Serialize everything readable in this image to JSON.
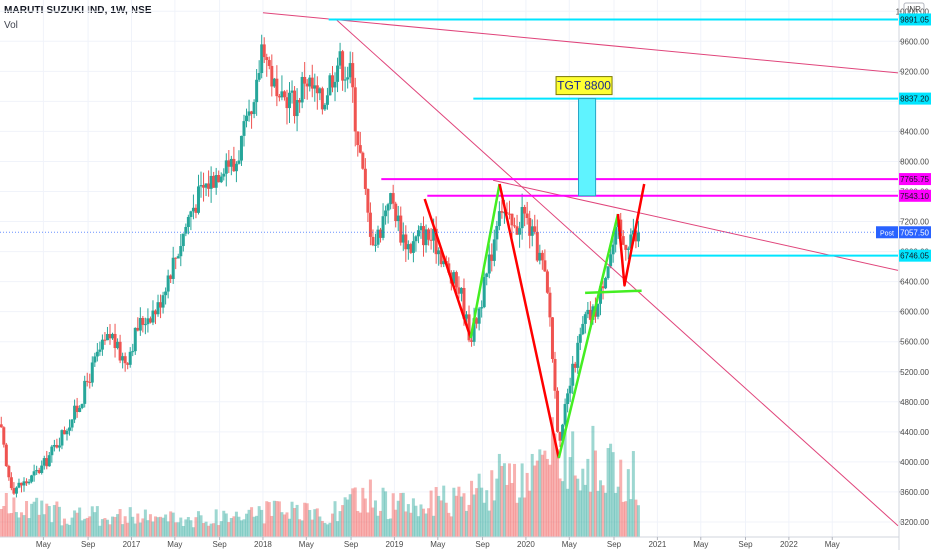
{
  "header": {
    "title": "MARUTI SUZUKI IND, 1W, NSE",
    "volume_label": "Vol"
  },
  "currency_badge": "INR",
  "colors": {
    "up": "#26a69a",
    "down": "#ef5350",
    "cyan_level": "#00e5ff",
    "magenta_level": "#ff00ff",
    "trendline": "#e0457b",
    "pattern_red": "#ff0000",
    "pattern_green": "#44ee22",
    "target_box": "#5ff3ff",
    "target_label_bg": "#ffff33"
  },
  "chart_data": {
    "type": "candlestick",
    "symbol": "MARUTI SUZUKI IND",
    "interval": "1W",
    "exchange": "NSE",
    "ylim": [
      3000,
      10150
    ],
    "y_ticks": [
      "10000.00",
      "9600.00",
      "9200.00",
      "8800.00",
      "8400.00",
      "8000.00",
      "7600.00",
      "7200.00",
      "6800.00",
      "6400.00",
      "6000.00",
      "5600.00",
      "5200.00",
      "4800.00",
      "4400.00",
      "4000.00",
      "3600.00",
      "3200.00"
    ],
    "x_ticks": [
      {
        "label": "May",
        "t": 2016.33
      },
      {
        "label": "Sep",
        "t": 2016.67
      },
      {
        "label": "2017",
        "t": 2017.0
      },
      {
        "label": "May",
        "t": 2017.33
      },
      {
        "label": "Sep",
        "t": 2017.67
      },
      {
        "label": "2018",
        "t": 2018.0
      },
      {
        "label": "May",
        "t": 2018.33
      },
      {
        "label": "Sep",
        "t": 2018.67
      },
      {
        "label": "2019",
        "t": 2019.0
      },
      {
        "label": "May",
        "t": 2019.33
      },
      {
        "label": "Sep",
        "t": 2019.67
      },
      {
        "label": "2020",
        "t": 2020.0
      },
      {
        "label": "May",
        "t": 2020.33
      },
      {
        "label": "Sep",
        "t": 2020.67
      },
      {
        "label": "2021",
        "t": 2021.0
      },
      {
        "label": "May",
        "t": 2021.33
      },
      {
        "label": "Sep",
        "t": 2021.67
      },
      {
        "label": "2022",
        "t": 2022.0
      },
      {
        "label": "May",
        "t": 2022.33
      }
    ],
    "price_path": [
      {
        "t": 2016.0,
        "price": 4500
      },
      {
        "t": 2016.05,
        "price": 3900
      },
      {
        "t": 2016.1,
        "price": 3650
      },
      {
        "t": 2016.22,
        "price": 3750
      },
      {
        "t": 2016.33,
        "price": 3950
      },
      {
        "t": 2016.5,
        "price": 4450
      },
      {
        "t": 2016.6,
        "price": 4750
      },
      {
        "t": 2016.67,
        "price": 5100
      },
      {
        "t": 2016.75,
        "price": 5450
      },
      {
        "t": 2016.85,
        "price": 5700
      },
      {
        "t": 2016.9,
        "price": 5450
      },
      {
        "t": 2016.96,
        "price": 5350
      },
      {
        "t": 2017.05,
        "price": 5800
      },
      {
        "t": 2017.12,
        "price": 5950
      },
      {
        "t": 2017.2,
        "price": 6050
      },
      {
        "t": 2017.27,
        "price": 6450
      },
      {
        "t": 2017.35,
        "price": 6800
      },
      {
        "t": 2017.45,
        "price": 7350
      },
      {
        "t": 2017.55,
        "price": 7650
      },
      {
        "t": 2017.65,
        "price": 7850
      },
      {
        "t": 2017.72,
        "price": 8050
      },
      {
        "t": 2017.78,
        "price": 7900
      },
      {
        "t": 2017.85,
        "price": 8350
      },
      {
        "t": 2017.93,
        "price": 8600
      },
      {
        "t": 2018.0,
        "price": 9700
      },
      {
        "t": 2018.03,
        "price": 9350
      },
      {
        "t": 2018.08,
        "price": 9050
      },
      {
        "t": 2018.12,
        "price": 8650
      },
      {
        "t": 2018.18,
        "price": 8900
      },
      {
        "t": 2018.25,
        "price": 8750
      },
      {
        "t": 2018.32,
        "price": 9150
      },
      {
        "t": 2018.38,
        "price": 8950
      },
      {
        "t": 2018.45,
        "price": 8750
      },
      {
        "t": 2018.5,
        "price": 9050
      },
      {
        "t": 2018.57,
        "price": 9350
      },
      {
        "t": 2018.62,
        "price": 9250
      },
      {
        "t": 2018.67,
        "price": 9150
      },
      {
        "t": 2018.7,
        "price": 8600
      },
      {
        "t": 2018.75,
        "price": 7950
      },
      {
        "t": 2018.8,
        "price": 7250
      },
      {
        "t": 2018.85,
        "price": 6900
      },
      {
        "t": 2018.9,
        "price": 7150
      },
      {
        "t": 2018.95,
        "price": 7550
      },
      {
        "t": 2019.0,
        "price": 7400
      },
      {
        "t": 2019.05,
        "price": 7050
      },
      {
        "t": 2019.12,
        "price": 6850
      },
      {
        "t": 2019.2,
        "price": 7050
      },
      {
        "t": 2019.3,
        "price": 6950
      },
      {
        "t": 2019.35,
        "price": 6800
      },
      {
        "t": 2019.42,
        "price": 6450
      },
      {
        "t": 2019.5,
        "price": 6300
      },
      {
        "t": 2019.55,
        "price": 5850
      },
      {
        "t": 2019.58,
        "price": 5650
      },
      {
        "t": 2019.63,
        "price": 5950
      },
      {
        "t": 2019.7,
        "price": 6450
      },
      {
        "t": 2019.75,
        "price": 6900
      },
      {
        "t": 2019.8,
        "price": 7500
      },
      {
        "t": 2019.86,
        "price": 7200
      },
      {
        "t": 2019.92,
        "price": 7050
      },
      {
        "t": 2019.97,
        "price": 7350
      },
      {
        "t": 2020.02,
        "price": 7150
      },
      {
        "t": 2020.08,
        "price": 6850
      },
      {
        "t": 2020.13,
        "price": 6600
      },
      {
        "t": 2020.18,
        "price": 6000
      },
      {
        "t": 2020.21,
        "price": 5200
      },
      {
        "t": 2020.24,
        "price": 4500
      },
      {
        "t": 2020.27,
        "price": 4300
      },
      {
        "t": 2020.3,
        "price": 4700
      },
      {
        "t": 2020.35,
        "price": 5150
      },
      {
        "t": 2020.4,
        "price": 5550
      },
      {
        "t": 2020.45,
        "price": 5900
      },
      {
        "t": 2020.5,
        "price": 5950
      },
      {
        "t": 2020.55,
        "price": 6100
      },
      {
        "t": 2020.6,
        "price": 6550
      },
      {
        "t": 2020.65,
        "price": 6800
      },
      {
        "t": 2020.7,
        "price": 7100
      },
      {
        "t": 2020.73,
        "price": 6900
      },
      {
        "t": 2020.77,
        "price": 6950
      },
      {
        "t": 2020.8,
        "price": 7050
      },
      {
        "t": 2020.84,
        "price": 6950
      },
      {
        "t": 2020.87,
        "price": 7050
      }
    ],
    "volume_path": [
      {
        "t": 2016.0,
        "v": 0.25
      },
      {
        "t": 2016.5,
        "v": 0.18
      },
      {
        "t": 2017.0,
        "v": 0.16
      },
      {
        "t": 2017.5,
        "v": 0.14
      },
      {
        "t": 2018.0,
        "v": 0.2
      },
      {
        "t": 2018.5,
        "v": 0.18
      },
      {
        "t": 2018.8,
        "v": 0.32
      },
      {
        "t": 2019.0,
        "v": 0.25
      },
      {
        "t": 2019.5,
        "v": 0.28
      },
      {
        "t": 2019.8,
        "v": 0.45
      },
      {
        "t": 2020.0,
        "v": 0.38
      },
      {
        "t": 2020.2,
        "v": 0.65
      },
      {
        "t": 2020.35,
        "v": 0.7
      },
      {
        "t": 2020.6,
        "v": 0.55
      },
      {
        "t": 2020.87,
        "v": 0.45
      }
    ],
    "horizontal_levels": [
      {
        "label": "9891.05",
        "price": 9891.05,
        "color": "cyan",
        "t_start": 2018.5
      },
      {
        "label": "8837.20",
        "price": 8837.2,
        "color": "cyan",
        "t_start": 2019.6
      },
      {
        "label": "7765.75",
        "price": 7765.75,
        "color": "magenta",
        "t_start": 2018.9
      },
      {
        "label": "7543.10",
        "price": 7543.1,
        "color": "magenta",
        "t_start": 2019.25
      },
      {
        "label": "6746.05",
        "price": 6746.05,
        "color": "cyan",
        "t_start": 2020.8
      }
    ],
    "current_price": {
      "label": "Post",
      "value": "7057.50",
      "price": 7057.5
    },
    "target": {
      "label": "TGT 8800",
      "price_low": 7543.1,
      "price_high": 8837.2,
      "t_start": 2020.4,
      "t_end": 2020.53
    },
    "trendlines": [
      {
        "t1": 2018.0,
        "p1": 9980,
        "t2": 2022.83,
        "p2": 9180
      },
      {
        "t1": 2018.55,
        "p1": 9900,
        "t2": 2022.83,
        "p2": 3150
      },
      {
        "t1": 2019.75,
        "p1": 7750,
        "t2": 2022.83,
        "p2": 6550
      }
    ],
    "pattern_lines": [
      {
        "color": "red",
        "points": [
          {
            "t": 2019.23,
            "p": 7500
          },
          {
            "t": 2019.58,
            "p": 5650
          }
        ]
      },
      {
        "color": "green",
        "points": [
          {
            "t": 2019.58,
            "p": 5650
          },
          {
            "t": 2019.8,
            "p": 7700
          }
        ]
      },
      {
        "color": "red",
        "points": [
          {
            "t": 2019.8,
            "p": 7700
          },
          {
            "t": 2020.25,
            "p": 4050
          }
        ]
      },
      {
        "color": "green",
        "points": [
          {
            "t": 2020.25,
            "p": 4050
          },
          {
            "t": 2020.7,
            "p": 7300
          }
        ]
      },
      {
        "color": "red",
        "points": [
          {
            "t": 2020.7,
            "p": 7300
          },
          {
            "t": 2020.75,
            "p": 6350
          },
          {
            "t": 2020.9,
            "p": 7700
          }
        ]
      },
      {
        "color": "green",
        "points": [
          {
            "t": 2020.45,
            "p": 6250
          },
          {
            "t": 2020.88,
            "p": 6280
          }
        ]
      }
    ]
  }
}
